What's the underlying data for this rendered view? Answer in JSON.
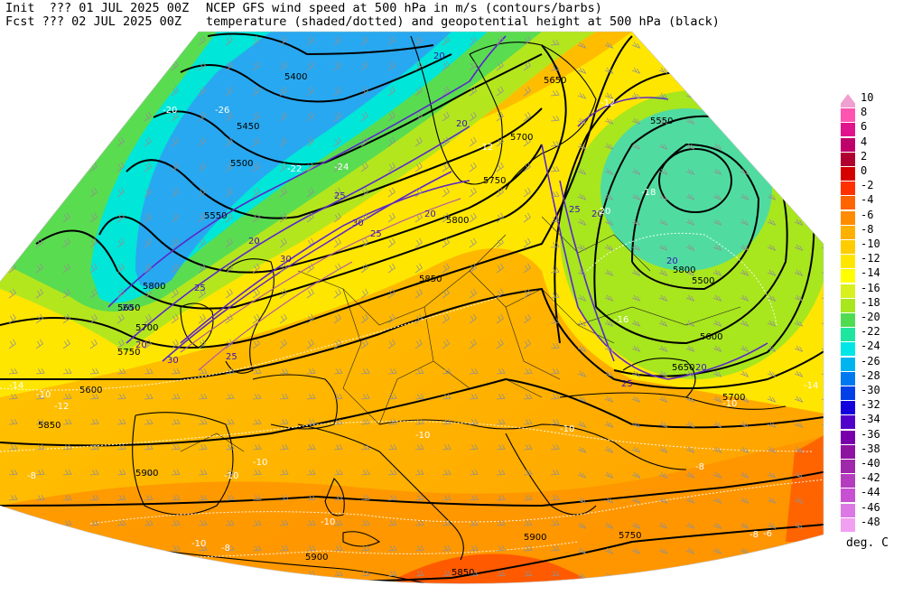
{
  "header": {
    "init_line": "Init  ??? 01 JUL 2025 00Z",
    "fcst_line": "Fcst ??? 02 JUL 2025 00Z",
    "title_line1": "NCEP GFS wind speed at 500 hPa in m/s (contours/barbs)",
    "title_line2": "temperature (shaded/dotted) and geopotential height at 500 hPa (black)"
  },
  "colorbar": {
    "units": "deg. C",
    "levels": [
      {
        "label": "10",
        "color": "#f0a0d0"
      },
      {
        "label": "8",
        "color": "#ff55b0"
      },
      {
        "label": "6",
        "color": "#e0148c"
      },
      {
        "label": "4",
        "color": "#c0006a"
      },
      {
        "label": "2",
        "color": "#b00030"
      },
      {
        "label": "0",
        "color": "#d40000"
      },
      {
        "label": "-2",
        "color": "#ff3000"
      },
      {
        "label": "-4",
        "color": "#ff6400"
      },
      {
        "label": "-6",
        "color": "#ff8c00"
      },
      {
        "label": "-8",
        "color": "#ffb000"
      },
      {
        "label": "-10",
        "color": "#ffcc00"
      },
      {
        "label": "-12",
        "color": "#ffe600"
      },
      {
        "label": "-14",
        "color": "#ffff00"
      },
      {
        "label": "-16",
        "color": "#d8f01e"
      },
      {
        "label": "-18",
        "color": "#a8e61e"
      },
      {
        "label": "-20",
        "color": "#50dc50"
      },
      {
        "label": "-22",
        "color": "#1ee6a0"
      },
      {
        "label": "-24",
        "color": "#00e6e6"
      },
      {
        "label": "-26",
        "color": "#00b4f0"
      },
      {
        "label": "-28",
        "color": "#0078f0"
      },
      {
        "label": "-30",
        "color": "#0040e6"
      },
      {
        "label": "-32",
        "color": "#1400dc"
      },
      {
        "label": "-34",
        "color": "#5000c8"
      },
      {
        "label": "-36",
        "color": "#7800aa"
      },
      {
        "label": "-38",
        "color": "#8c14a0"
      },
      {
        "label": "-40",
        "color": "#a028aa"
      },
      {
        "label": "-42",
        "color": "#b43cbe"
      },
      {
        "label": "-44",
        "color": "#c850d2"
      },
      {
        "label": "-46",
        "color": "#dc78e6"
      },
      {
        "label": "-48",
        "color": "#f0a0f0"
      }
    ]
  },
  "map": {
    "height_labels": [
      "5400",
      "5450",
      "5500",
      "5550",
      "5600",
      "5650",
      "5700",
      "5750",
      "5800",
      "5850",
      "5900",
      "5650",
      "5700",
      "5750",
      "5800",
      "5850",
      "5900",
      "5550",
      "5500",
      "5600",
      "5650",
      "5700",
      "5750",
      "5850",
      "5900",
      "5800"
    ],
    "wind_labels": [
      "20",
      "25",
      "30",
      "20",
      "25",
      "30",
      "20",
      "25",
      "20",
      "25",
      "20",
      "20",
      "25",
      "20",
      "20",
      "25",
      "30",
      "20"
    ],
    "temp_labels": [
      "-26",
      "-20",
      "-22",
      "-24",
      "-14",
      "-10",
      "-12",
      "-8",
      "-10",
      "-10",
      "-10",
      "-10",
      "-8",
      "-16",
      "-18",
      "-20",
      "-12",
      "-10",
      "-8",
      "-8",
      "-10",
      "-6",
      "-12",
      "-14",
      "-10",
      "-8"
    ]
  }
}
